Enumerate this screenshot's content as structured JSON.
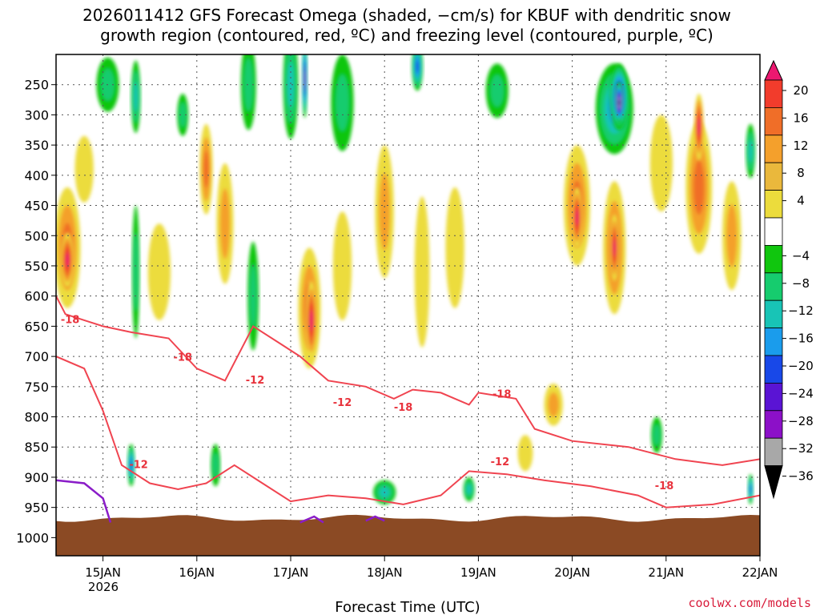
{
  "chart_data": {
    "type": "heatmap",
    "title_line1": "2026011412 GFS Forecast Omega (shaded, −cm/s) for KBUF with dendritic snow",
    "title_line2": "growth region (contoured, red, ºC) and freezing level (contoured, purple, ºC)",
    "xlabel": "Forecast Time (UTC)",
    "credit": "coolwx.com/models",
    "x_start_day": 14.5,
    "x_end_day": 22.0,
    "x_ticks": [
      {
        "day": 15,
        "label": "15JAN"
      },
      {
        "day": 16,
        "label": "16JAN"
      },
      {
        "day": 17,
        "label": "17JAN"
      },
      {
        "day": 18,
        "label": "18JAN"
      },
      {
        "day": 19,
        "label": "19JAN"
      },
      {
        "day": 20,
        "label": "20JAN"
      },
      {
        "day": 21,
        "label": "21JAN"
      },
      {
        "day": 22,
        "label": "22JAN"
      }
    ],
    "year_label": "2026",
    "y_label_list": [
      "250",
      "300",
      "350",
      "400",
      "450",
      "500",
      "550",
      "600",
      "650",
      "700",
      "750",
      "800",
      "850",
      "900",
      "950",
      "1000"
    ],
    "y_levels": [
      250,
      300,
      350,
      400,
      450,
      500,
      550,
      600,
      650,
      700,
      750,
      800,
      850,
      900,
      950,
      1000
    ],
    "ylim_hpa": [
      200,
      1030
    ],
    "colorbar_labels": [
      "20",
      "16",
      "12",
      "8",
      "4",
      "−4",
      "−8",
      "−12",
      "−16",
      "−20",
      "−24",
      "−28",
      "−32",
      "−36"
    ],
    "colorbar_levels": [
      20,
      16,
      12,
      8,
      4,
      -4,
      -8,
      -12,
      -16,
      -20,
      -24,
      -28,
      -32,
      -36
    ],
    "colorbar_colors": [
      "#ec1870",
      "#f23c2c",
      "#f06e28",
      "#f4a02c",
      "#eab83c",
      "#ecdc3c",
      "#ffffff",
      "#10c60e",
      "#16cc6e",
      "#18c4b6",
      "#1a9cec",
      "#1848e8",
      "#5a14d4",
      "#8c10c8",
      "#a8a8a8",
      "#000000"
    ],
    "contour_labels": [
      {
        "day": 14.65,
        "p": 645,
        "text": "-18"
      },
      {
        "day": 15.85,
        "p": 707,
        "text": "-18"
      },
      {
        "day": 15.38,
        "p": 885,
        "text": "-12"
      },
      {
        "day": 16.62,
        "p": 745,
        "text": "-12"
      },
      {
        "day": 17.55,
        "p": 782,
        "text": "-12"
      },
      {
        "day": 18.2,
        "p": 790,
        "text": "-18"
      },
      {
        "day": 19.25,
        "p": 768,
        "text": "-18"
      },
      {
        "day": 19.23,
        "p": 880,
        "text": "-12"
      },
      {
        "day": 20.98,
        "p": 920,
        "text": "-18"
      }
    ],
    "blobs": [
      {
        "day": 14.62,
        "p": 520,
        "w": 0.14,
        "h": 200,
        "v": 14
      },
      {
        "day": 14.62,
        "p": 540,
        "w": 0.07,
        "h": 90,
        "v": 20
      },
      {
        "day": 14.8,
        "p": 390,
        "w": 0.1,
        "h": 110,
        "v": 6
      },
      {
        "day": 15.05,
        "p": 250,
        "w": 0.12,
        "h": 90,
        "v": -8
      },
      {
        "day": 15.35,
        "p": 270,
        "w": 0.05,
        "h": 120,
        "v": -14
      },
      {
        "day": 15.35,
        "p": 560,
        "w": 0.04,
        "h": 220,
        "v": -8
      },
      {
        "day": 15.3,
        "p": 880,
        "w": 0.04,
        "h": 70,
        "v": -20
      },
      {
        "day": 15.6,
        "p": 560,
        "w": 0.12,
        "h": 160,
        "v": 6
      },
      {
        "day": 15.85,
        "p": 300,
        "w": 0.06,
        "h": 70,
        "v": -8
      },
      {
        "day": 16.1,
        "p": 390,
        "w": 0.07,
        "h": 150,
        "v": 12
      },
      {
        "day": 16.3,
        "p": 480,
        "w": 0.09,
        "h": 200,
        "v": 8
      },
      {
        "day": 16.2,
        "p": 880,
        "w": 0.05,
        "h": 70,
        "v": -8
      },
      {
        "day": 16.55,
        "p": 250,
        "w": 0.08,
        "h": 150,
        "v": -8
      },
      {
        "day": 16.6,
        "p": 600,
        "w": 0.06,
        "h": 180,
        "v": -8
      },
      {
        "day": 17.0,
        "p": 250,
        "w": 0.08,
        "h": 180,
        "v": -12
      },
      {
        "day": 17.15,
        "p": 240,
        "w": 0.03,
        "h": 130,
        "v": -28
      },
      {
        "day": 17.2,
        "p": 620,
        "w": 0.12,
        "h": 200,
        "v": 14
      },
      {
        "day": 17.22,
        "p": 640,
        "w": 0.06,
        "h": 130,
        "v": 20
      },
      {
        "day": 17.55,
        "p": 280,
        "w": 0.12,
        "h": 160,
        "v": -8
      },
      {
        "day": 17.55,
        "p": 550,
        "w": 0.1,
        "h": 180,
        "v": 6
      },
      {
        "day": 18.0,
        "p": 460,
        "w": 0.1,
        "h": 220,
        "v": 8
      },
      {
        "day": 18.0,
        "p": 925,
        "w": 0.12,
        "h": 40,
        "v": -12
      },
      {
        "day": 18.35,
        "p": 220,
        "w": 0.06,
        "h": 80,
        "v": -20
      },
      {
        "day": 18.4,
        "p": 560,
        "w": 0.08,
        "h": 250,
        "v": 6
      },
      {
        "day": 18.75,
        "p": 520,
        "w": 0.1,
        "h": 200,
        "v": 6
      },
      {
        "day": 18.9,
        "p": 920,
        "w": 0.06,
        "h": 40,
        "v": -12
      },
      {
        "day": 19.2,
        "p": 260,
        "w": 0.12,
        "h": 90,
        "v": -8
      },
      {
        "day": 19.8,
        "p": 780,
        "w": 0.1,
        "h": 70,
        "v": 10
      },
      {
        "day": 20.05,
        "p": 450,
        "w": 0.14,
        "h": 200,
        "v": 12
      },
      {
        "day": 20.05,
        "p": 470,
        "w": 0.06,
        "h": 100,
        "v": 20
      },
      {
        "day": 20.45,
        "p": 520,
        "w": 0.12,
        "h": 220,
        "v": 14
      },
      {
        "day": 20.45,
        "p": 520,
        "w": 0.05,
        "h": 110,
        "v": 20
      },
      {
        "day": 20.45,
        "p": 290,
        "w": 0.2,
        "h": 150,
        "v": -16
      },
      {
        "day": 20.5,
        "p": 270,
        "w": 0.1,
        "h": 110,
        "v": -28
      },
      {
        "day": 20.5,
        "p": 280,
        "w": 0.05,
        "h": 70,
        "v": -36
      },
      {
        "day": 20.95,
        "p": 380,
        "w": 0.12,
        "h": 160,
        "v": 4
      },
      {
        "day": 21.35,
        "p": 420,
        "w": 0.14,
        "h": 220,
        "v": 14
      },
      {
        "day": 21.35,
        "p": 320,
        "w": 0.05,
        "h": 110,
        "v": 20
      },
      {
        "day": 21.7,
        "p": 500,
        "w": 0.1,
        "h": 180,
        "v": 8
      },
      {
        "day": 21.9,
        "p": 360,
        "w": 0.05,
        "h": 90,
        "v": -12
      },
      {
        "day": 21.9,
        "p": 920,
        "w": 0.03,
        "h": 50,
        "v": -20
      },
      {
        "day": 20.9,
        "p": 830,
        "w": 0.06,
        "h": 60,
        "v": -8
      },
      {
        "day": 19.5,
        "p": 860,
        "w": 0.08,
        "h": 60,
        "v": 6
      }
    ],
    "dgz_contours": [
      [
        [
          14.5,
          600
        ],
        [
          14.6,
          630
        ],
        [
          14.8,
          640
        ],
        [
          15.0,
          650
        ],
        [
          15.3,
          660
        ],
        [
          15.7,
          670
        ],
        [
          16.0,
          720
        ],
        [
          16.3,
          740
        ],
        [
          16.6,
          650
        ],
        [
          16.9,
          680
        ],
        [
          17.1,
          700
        ],
        [
          17.4,
          740
        ],
        [
          17.8,
          750
        ],
        [
          18.1,
          770
        ],
        [
          18.3,
          755
        ],
        [
          18.6,
          760
        ],
        [
          18.9,
          780
        ],
        [
          19.0,
          760
        ],
        [
          19.4,
          770
        ],
        [
          19.6,
          820
        ],
        [
          20.0,
          840
        ],
        [
          20.6,
          850
        ],
        [
          21.1,
          870
        ],
        [
          21.6,
          880
        ],
        [
          22.0,
          870
        ]
      ],
      [
        [
          14.5,
          700
        ],
        [
          14.8,
          720
        ],
        [
          15.0,
          790
        ],
        [
          15.2,
          880
        ],
        [
          15.5,
          910
        ],
        [
          15.8,
          920
        ],
        [
          16.1,
          910
        ],
        [
          16.4,
          880
        ],
        [
          16.7,
          910
        ],
        [
          17.0,
          940
        ],
        [
          17.4,
          930
        ],
        [
          17.8,
          935
        ],
        [
          18.2,
          945
        ],
        [
          18.6,
          930
        ],
        [
          18.9,
          890
        ],
        [
          19.3,
          895
        ],
        [
          19.7,
          905
        ],
        [
          20.2,
          915
        ],
        [
          20.7,
          930
        ],
        [
          21.0,
          950
        ],
        [
          21.5,
          945
        ],
        [
          22.0,
          930
        ]
      ]
    ],
    "freezing_contours": [
      [
        [
          14.5,
          905
        ],
        [
          14.8,
          910
        ],
        [
          15.0,
          935
        ],
        [
          15.08,
          975
        ]
      ],
      [
        [
          17.1,
          975
        ],
        [
          17.25,
          965
        ],
        [
          17.35,
          975
        ]
      ],
      [
        [
          17.8,
          972
        ],
        [
          17.9,
          965
        ],
        [
          18.0,
          972
        ]
      ]
    ]
  }
}
